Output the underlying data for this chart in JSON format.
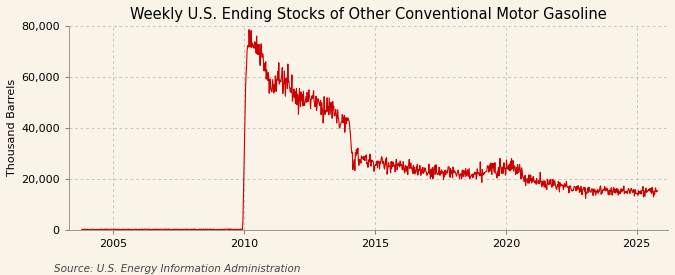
{
  "title": "Weekly U.S. Ending Stocks of Other Conventional Motor Gasoline",
  "ylabel": "Thousand Barrels",
  "source": "Source: U.S. Energy Information Administration",
  "background_color": "#faf4e8",
  "plot_bg_color": "#faf4e8",
  "line_color": "#cc0000",
  "grid_color": "#8899aa",
  "ylim": [
    0,
    80000
  ],
  "yticks": [
    0,
    20000,
    40000,
    60000,
    80000
  ],
  "ytick_labels": [
    "0",
    "20,000",
    "40,000",
    "60,000",
    "80,000"
  ],
  "xlim_start": 2003.3,
  "xlim_end": 2026.2,
  "xticks": [
    2005,
    2010,
    2015,
    2020,
    2025
  ],
  "title_fontsize": 10.5,
  "axis_fontsize": 8,
  "source_fontsize": 7.5,
  "linewidth": 0.8
}
